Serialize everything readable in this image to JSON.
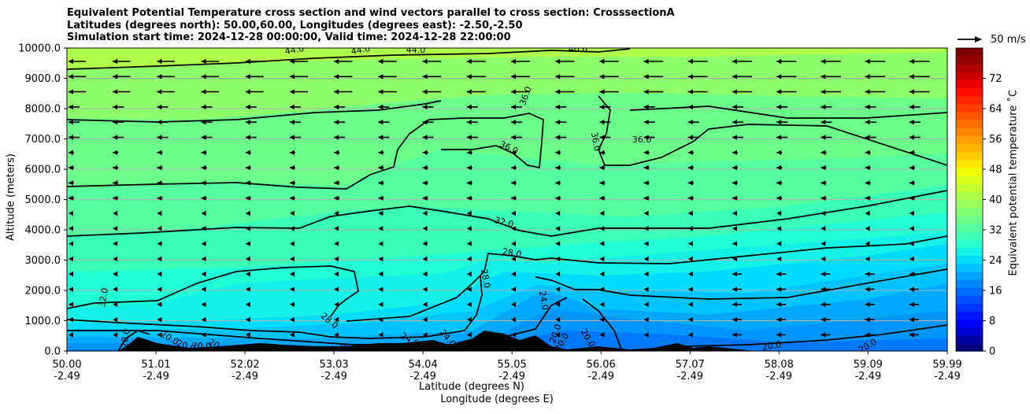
{
  "title_lines": [
    "Equivalent Potential Temperature cross section and wind vectors parallel to cross section: CrosssectionA",
    "Latitudes (degrees north): 50.00,60.00, Longitudes (degrees east): -2.50,-2.50",
    "Simulation start time: 2024-12-28 00:00:00, Valid time: 2024-12-28 22:00:00"
  ],
  "chart_data": {
    "type": "heatmap",
    "ylabel": "Altitude (meters)",
    "xlabel_lat": "Latitude (degrees N)",
    "xlabel_lon": "Longitude (degrees E)",
    "colorbar_label": "Equivalent potential temperature ˚C",
    "quiver_key": "50 m/s",
    "ylim": [
      0,
      10000
    ],
    "yticks": [
      "0.0",
      "1000.0",
      "2000.0",
      "3000.0",
      "4000.0",
      "5000.0",
      "6000.0",
      "7000.0",
      "8000.0",
      "9000.0",
      "10000.0"
    ],
    "ytick_values": [
      0,
      1000,
      2000,
      3000,
      4000,
      5000,
      6000,
      7000,
      8000,
      9000,
      10000
    ],
    "xlim": [
      50.0,
      59.99
    ],
    "xtick_lat": [
      "50.00",
      "51.01",
      "52.02",
      "53.03",
      "54.04",
      "55.05",
      "56.06",
      "57.07",
      "58.08",
      "59.09",
      "59.99"
    ],
    "xtick_lon": [
      "-2.49",
      "-2.49",
      "-2.49",
      "-2.49",
      "-2.49",
      "-2.49",
      "-2.49",
      "-2.49",
      "-2.49",
      "-2.49",
      "-2.49"
    ],
    "xtick_values": [
      50.0,
      51.01,
      52.02,
      53.03,
      54.04,
      55.05,
      56.06,
      57.07,
      58.08,
      59.09,
      59.99
    ],
    "colorbar_ticks": [
      0,
      8,
      16,
      24,
      32,
      40,
      48,
      56,
      64,
      72
    ],
    "colorbar_range": [
      0,
      80
    ],
    "grid": true,
    "contour_labels": [
      "44.0",
      "44.0",
      "44.0",
      "40.0",
      "36.0",
      "36.0",
      "36.0",
      "36.0",
      "32.0",
      "32.0",
      "28.0",
      "28.0",
      "28.0",
      "24.0",
      "24.0",
      "24.0",
      "20.0",
      "20.0",
      "20.0",
      "20.0",
      "20.0",
      "20.0",
      "20.0",
      "20.0",
      "20.0",
      "20.0",
      "20.0",
      "20.0",
      "20.0",
      "20.0"
    ],
    "colors": {
      "c44": "#b0ff4a",
      "c40": "#8dff6a",
      "c36": "#6cff8a",
      "c34": "#56ffa0",
      "c32": "#3affb8",
      "c30": "#22ffd4",
      "c28": "#14f2e6",
      "c26": "#00dcff",
      "c24": "#00c4ff",
      "c22": "#00a8ff",
      "c20": "#0094ff",
      "c18": "#0078ff",
      "terrain": "#000000",
      "contour": "#000000",
      "grid": "#b0b0b0"
    }
  }
}
